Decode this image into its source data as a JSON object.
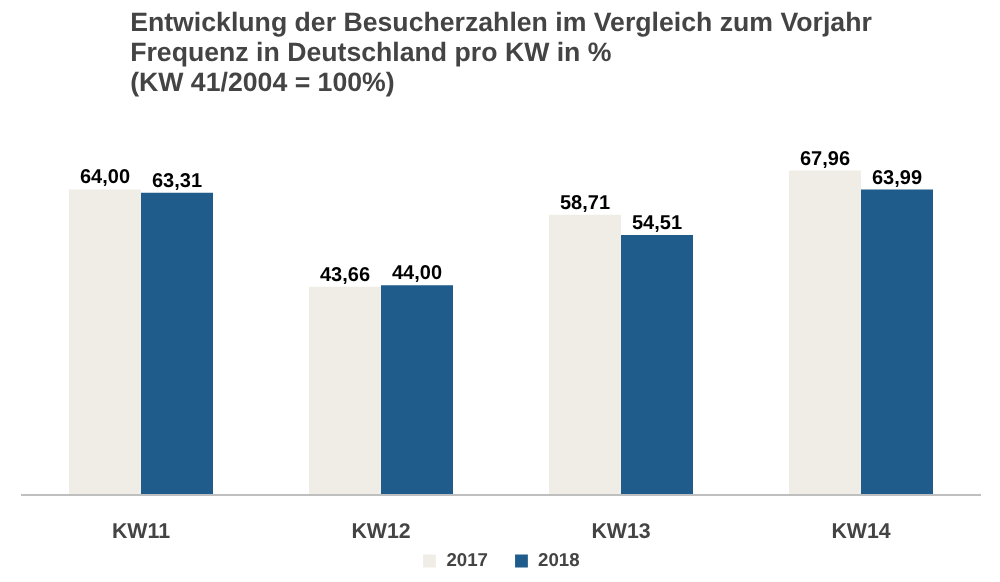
{
  "chart_data": {
    "type": "bar",
    "title": "Entwicklung der Besucherzahlen im Vergleich zum Vorjahr\nFrequenz in Deutschland pro KW in %\n(KW 41/2004 = 100%)",
    "categories": [
      "KW11",
      "KW12",
      "KW13",
      "KW14"
    ],
    "series": [
      {
        "name": "2017",
        "color": "#f0ede6",
        "values": [
          64.0,
          43.66,
          58.71,
          67.96
        ],
        "value_labels": [
          "64,00",
          "43,66",
          "58,71",
          "67,96"
        ]
      },
      {
        "name": "2018",
        "color": "#1f5c8c",
        "values": [
          63.31,
          44.0,
          54.51,
          63.99
        ],
        "value_labels": [
          "63,31",
          "44,00",
          "54,51",
          "63,99"
        ]
      }
    ],
    "legend": "bottom",
    "grid": false
  }
}
